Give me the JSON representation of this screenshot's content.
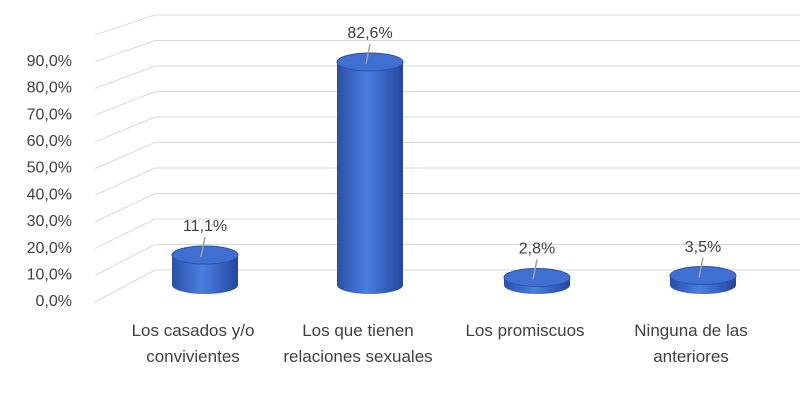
{
  "chart_data": {
    "type": "bar3d",
    "categories": [
      "Los casados y/o convivientes",
      "Los que tienen relaciones sexuales",
      "Los promiscuos",
      "Ninguna de las anteriores"
    ],
    "values": [
      11.1,
      82.6,
      2.8,
      3.5
    ],
    "value_labels": [
      "11,1%",
      "82,6%",
      "2,8%",
      "3,5%"
    ],
    "color": "#3f6fd0",
    "ylim": [
      0,
      100
    ],
    "yticks": [
      {
        "value": 0,
        "label": "0,0%"
      },
      {
        "value": 10,
        "label": "10,0%"
      },
      {
        "value": 20,
        "label": "20,0%"
      },
      {
        "value": 30,
        "label": "30,0%"
      },
      {
        "value": 40,
        "label": "40,0%"
      },
      {
        "value": 50,
        "label": "50,0%"
      },
      {
        "value": 60,
        "label": "60,0%"
      },
      {
        "value": 70,
        "label": "70,0%"
      },
      {
        "value": 80,
        "label": "80,0%"
      },
      {
        "value": 90,
        "label": "90,0%"
      }
    ],
    "grid": true
  }
}
